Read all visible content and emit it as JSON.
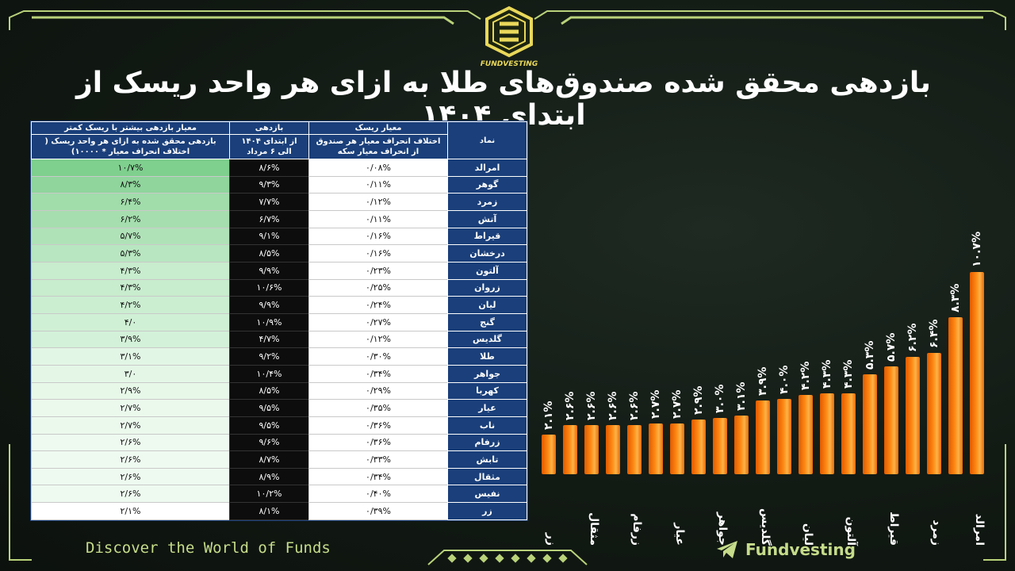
{
  "brand": {
    "logo_text": "FUNDVESTING",
    "footer_tagline": "Discover the World of Funds",
    "footer_brand": "Fundvesting",
    "accent": "#c6dc8a",
    "logo_color": "#e9d85a"
  },
  "title": "بازدهی محقق شده صندوق‌های طلا به ازای هر واحد ریسک از ابتدای ۱۴۰۴",
  "table": {
    "headers": {
      "symbol": "نماد",
      "risk_top": "معیار ریسک",
      "risk_sub": "اختلاف انحراف معیار هر صندوق از انحراف معیار سکه",
      "return_top": "بازدهی",
      "return_sub": "از ابتدای ۱۴۰۴ الی ۶ مرداد",
      "rar_top": "معیار بازدهی بیشتر با ریسک کمتر",
      "rar_sub": "بازدهی محقق شده به ازای هر واحد ریسک ( اختلاف انحراف معیار * ۱۰۰۰۰)"
    },
    "rows": [
      {
        "symbol": "امرالد",
        "risk": "۰/۰۸%",
        "ret": "۸/۶%",
        "rar": "۱۰/۷%",
        "shade": "#7fcf8e"
      },
      {
        "symbol": "گوهر",
        "risk": "۰/۱۱%",
        "ret": "۹/۳%",
        "rar": "۸/۳%",
        "shade": "#8fd59c"
      },
      {
        "symbol": "زمرد",
        "risk": "۰/۱۲%",
        "ret": "۷/۷%",
        "rar": "۶/۴%",
        "shade": "#a1dcab"
      },
      {
        "symbol": "آتش",
        "risk": "۰/۱۱%",
        "ret": "۶/۷%",
        "rar": "۶/۲%",
        "shade": "#a6deaf"
      },
      {
        "symbol": "قیراط",
        "risk": "۰/۱۶%",
        "ret": "۹/۱%",
        "rar": "۵/۷%",
        "shade": "#b0e2b8"
      },
      {
        "symbol": "درخشان",
        "risk": "۰/۱۶%",
        "ret": "۸/۵%",
        "rar": "۵/۳%",
        "shade": "#b8e6c0"
      },
      {
        "symbol": "آلتون",
        "risk": "۰/۲۳%",
        "ret": "۹/۹%",
        "rar": "۴/۳%",
        "shade": "#c8ecce"
      },
      {
        "symbol": "زروان",
        "risk": "۰/۲۵%",
        "ret": "۱۰/۶%",
        "rar": "۴/۳%",
        "shade": "#c8ecce"
      },
      {
        "symbol": "لیان",
        "risk": "۰/۲۴%",
        "ret": "۹/۹%",
        "rar": "۴/۲%",
        "shade": "#cbeed1"
      },
      {
        "symbol": "گنج",
        "risk": "۰/۲۷%",
        "ret": "۱۰/۹%",
        "rar": "۴/۰",
        "shade": "#d0f0d5"
      },
      {
        "symbol": "گلدیس",
        "risk": "۰/۱۲%",
        "ret": "۴/۷%",
        "rar": "۳/۹%",
        "shade": "#d3f1d8"
      },
      {
        "symbol": "طلا",
        "risk": "۰/۳۰%",
        "ret": "۹/۲%",
        "rar": "۳/۱%",
        "shade": "#e2f6e5"
      },
      {
        "symbol": "جواهر",
        "risk": "۰/۳۴%",
        "ret": "۱۰/۴%",
        "rar": "۳/۰",
        "shade": "#e4f7e7"
      },
      {
        "symbol": "کهربا",
        "risk": "۰/۲۹%",
        "ret": "۸/۵%",
        "rar": "۲/۹%",
        "shade": "#e7f8e9"
      },
      {
        "symbol": "عیار",
        "risk": "۰/۳۵%",
        "ret": "۹/۵%",
        "rar": "۲/۷%",
        "shade": "#ebf9ed"
      },
      {
        "symbol": "ناب",
        "risk": "۰/۳۶%",
        "ret": "۹/۵%",
        "rar": "۲/۷%",
        "shade": "#ebf9ed"
      },
      {
        "symbol": "زرفام",
        "risk": "۰/۳۶%",
        "ret": "۹/۶%",
        "rar": "۲/۶%",
        "shade": "#eefaf0"
      },
      {
        "symbol": "تابش",
        "risk": "۰/۳۳%",
        "ret": "۸/۷%",
        "rar": "۲/۶%",
        "shade": "#eefaf0"
      },
      {
        "symbol": "مثقال",
        "risk": "۰/۳۴%",
        "ret": "۸/۹%",
        "rar": "۲/۶%",
        "shade": "#eefaf0"
      },
      {
        "symbol": "نفیس",
        "risk": "۰/۴۰%",
        "ret": "۱۰/۲%",
        "rar": "۲/۶%",
        "shade": "#eefaf0"
      },
      {
        "symbol": "زر",
        "risk": "۰/۳۹%",
        "ret": "۸/۱%",
        "rar": "۲/۱%",
        "shade": "#ffffff"
      }
    ]
  },
  "chart_data": {
    "type": "bar",
    "title": "",
    "xlabel": "",
    "ylabel": "",
    "ylim": [
      0,
      10.7
    ],
    "categories": [
      "زر",
      "نفیس",
      "مثقال",
      "تابش",
      "زرفام",
      "ناب",
      "عیار",
      "کهربا",
      "جواهر",
      "طلا",
      "گلدیس",
      "گنج",
      "لیان",
      "زروان",
      "آلتون",
      "درخشان",
      "قیراط",
      "آتش",
      "زمرد",
      "گوهر",
      "امرالد"
    ],
    "values": [
      2.1,
      2.6,
      2.6,
      2.6,
      2.6,
      2.7,
      2.7,
      2.9,
      3.0,
      3.1,
      3.9,
      4.0,
      4.2,
      4.3,
      4.3,
      5.3,
      5.7,
      6.2,
      6.4,
      8.3,
      10.7
    ],
    "value_labels": [
      "۲.۱%",
      "۲.۶%",
      "۲.۶%",
      "۲.۶%",
      "۲.۶%",
      "۲.۷%",
      "۲.۷%",
      "۲.۹%",
      "۳.۰%",
      "۳.۱%",
      "۳.۹%",
      "۴.۰%",
      "۴.۲%",
      "۴.۳%",
      "۴.۳%",
      "۵.۳%",
      "۵.۷%",
      "۶.۲%",
      "۶.۴%",
      "۸.۳%",
      "۱۰.۷%"
    ],
    "shown_x_labels": {
      "0": "زر",
      "2": "مثقال",
      "4": "زرفام",
      "6": "عیار",
      "8": "جواهر",
      "10": "گلدیس",
      "12": "لیان",
      "14": "آلتون",
      "16": "قیراط",
      "18": "زمرد",
      "20": "امرالد"
    },
    "bar_color": "#ff8a14",
    "grid": false
  }
}
